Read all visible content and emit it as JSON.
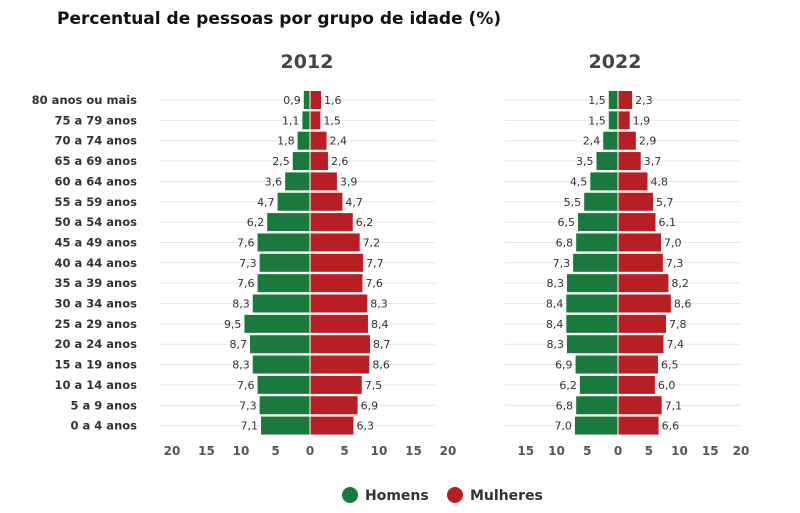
{
  "title": "Percentual de pessoas por grupo de idade (%)",
  "colors": {
    "men": "#1a7a3e",
    "women": "#b81f25"
  },
  "legend": [
    "Homens",
    "Mulheres"
  ],
  "chart_data": [
    {
      "type": "bar",
      "orientation": "horizontal-diverging",
      "title": "2012",
      "categories": [
        "80 anos ou mais",
        "75 a 79 anos",
        "70 a 74 anos",
        "65 a 69 anos",
        "60 a 64 anos",
        "55 a 59 anos",
        "50 a 54 anos",
        "45 a 49 anos",
        "40 a 44 anos",
        "35 a 39 anos",
        "30 a 34 anos",
        "25 a 29 anos",
        "20 a 24 anos",
        "15 a 19 anos",
        "10 a 14 anos",
        "5 a 9 anos",
        "0 a 4 anos"
      ],
      "series": [
        {
          "name": "Homens",
          "values": [
            0.9,
            1.1,
            1.8,
            2.5,
            3.6,
            4.7,
            6.2,
            7.6,
            7.3,
            7.6,
            8.3,
            9.5,
            8.7,
            8.3,
            7.6,
            7.3,
            7.1
          ],
          "labels": [
            "0,9",
            "1,1",
            "1,8",
            "2,5",
            "3,6",
            "4,7",
            "6,2",
            "7,6",
            "7,3",
            "7,6",
            "8,3",
            "9,5",
            "8,7",
            "8,3",
            "7,6",
            "7,3",
            "7,1"
          ]
        },
        {
          "name": "Mulheres",
          "values": [
            1.6,
            1.5,
            2.4,
            2.6,
            3.9,
            4.7,
            6.2,
            7.2,
            7.7,
            7.6,
            8.3,
            8.4,
            8.7,
            8.6,
            7.5,
            6.9,
            6.3
          ],
          "labels": [
            "1,6",
            "1,5",
            "2,4",
            "2,6",
            "3,9",
            "4,7",
            "6,2",
            "7,2",
            "7,7",
            "7,6",
            "8,3",
            "8,4",
            "8,7",
            "8,6",
            "7,5",
            "6,9",
            "6,3"
          ]
        }
      ],
      "xticks": [
        "20",
        "15",
        "10",
        "5",
        "0",
        "5",
        "10",
        "15",
        "20"
      ],
      "xlim": [
        -20,
        20
      ],
      "grid": true
    },
    {
      "type": "bar",
      "orientation": "horizontal-diverging",
      "title": "2022",
      "categories": [
        "80 anos ou mais",
        "75 a 79 anos",
        "70 a 74 anos",
        "65 a 69 anos",
        "60 a 64 anos",
        "55 a 59 anos",
        "50 a 54 anos",
        "45 a 49 anos",
        "40 a 44 anos",
        "35 a 39 anos",
        "30 a 34 anos",
        "25 a 29 anos",
        "20 a 24 anos",
        "15 a 19 anos",
        "10 a 14 anos",
        "5 a 9 anos",
        "0 a 4 anos"
      ],
      "series": [
        {
          "name": "Homens",
          "values": [
            1.5,
            1.5,
            2.4,
            3.5,
            4.5,
            5.5,
            6.5,
            6.8,
            7.3,
            8.3,
            8.4,
            8.4,
            8.3,
            6.9,
            6.2,
            6.8,
            7.0
          ],
          "labels": [
            "1,5",
            "1,5",
            "2,4",
            "3,5",
            "4,5",
            "5,5",
            "6,5",
            "6,8",
            "7,3",
            "8,3",
            "8,4",
            "8,4",
            "8,3",
            "6,9",
            "6,2",
            "6,8",
            "7,0"
          ]
        },
        {
          "name": "Mulheres",
          "values": [
            2.3,
            1.9,
            2.9,
            3.7,
            4.8,
            5.7,
            6.1,
            7.0,
            7.3,
            8.2,
            8.6,
            7.8,
            7.4,
            6.5,
            6.0,
            7.1,
            6.6
          ],
          "labels": [
            "2,3",
            "1,9",
            "2,9",
            "3,7",
            "4,8",
            "5,7",
            "6,1",
            "7,0",
            "7,3",
            "8,2",
            "8,6",
            "7,8",
            "7,4",
            "6,5",
            "6,0",
            "7,1",
            "6,6"
          ]
        }
      ],
      "xticks": [
        "15",
        "10",
        "5",
        "0",
        "5",
        "10",
        "15",
        "20"
      ],
      "xlim": [
        -15,
        20
      ],
      "grid": true
    }
  ]
}
